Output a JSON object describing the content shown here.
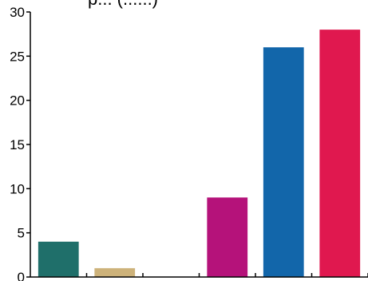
{
  "chart_data": {
    "type": "bar",
    "title": "",
    "title_fragment": "p... (......)",
    "xlabel": "",
    "ylabel": "",
    "ylim": [
      0,
      30
    ],
    "yticks": [
      0,
      5,
      10,
      15,
      20,
      25,
      30
    ],
    "ytick_labels": [
      "0",
      "5",
      "10",
      "15",
      "20",
      "25",
      "30"
    ],
    "grid": false,
    "legend": "none",
    "categories": [
      "",
      "",
      "",
      "",
      "",
      ""
    ],
    "values": [
      4,
      1,
      0,
      9,
      26,
      28
    ],
    "colors": [
      "#1f6f6a",
      "#cdb27a",
      "#ffffff",
      "#b5127a",
      "#1266aa",
      "#e0184f"
    ]
  }
}
